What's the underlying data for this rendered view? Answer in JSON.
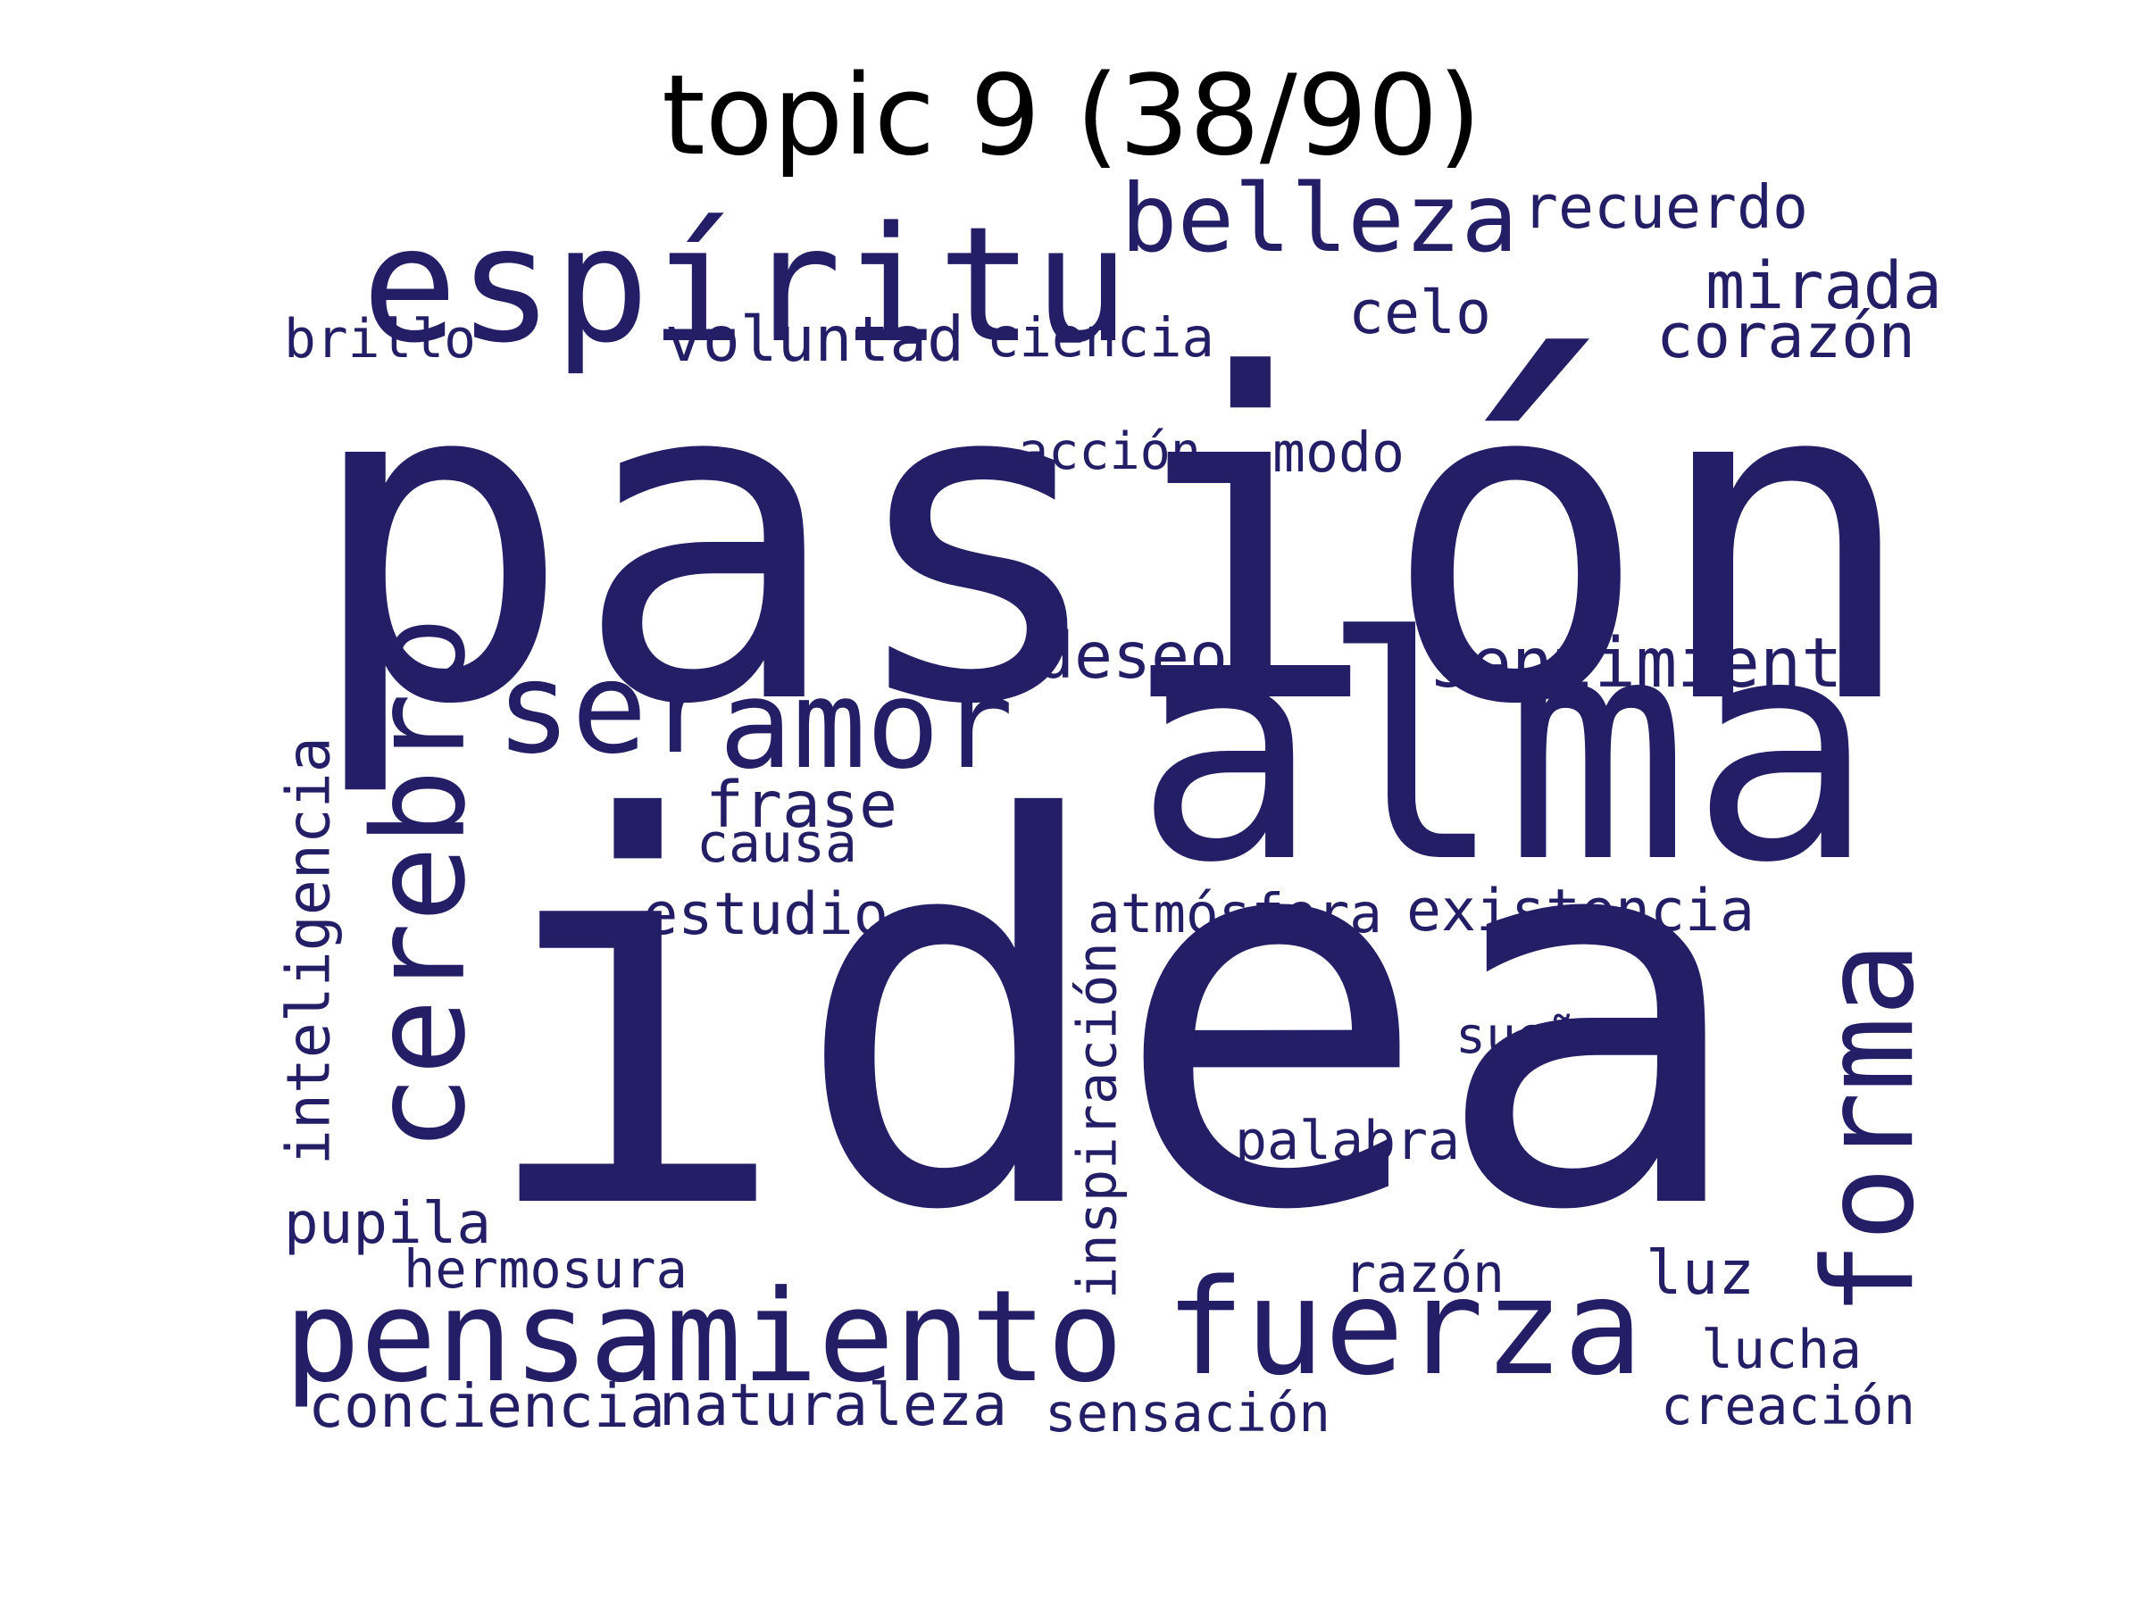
{
  "title": "topic 9 (38/90)",
  "colors": {
    "word": "#231e66",
    "title": "#000000",
    "background": "#ffffff"
  },
  "words": [
    {
      "text": "pasión",
      "orientation": "horizontal"
    },
    {
      "text": "idea",
      "orientation": "horizontal"
    },
    {
      "text": "alma",
      "orientation": "horizontal"
    },
    {
      "text": "espíritu",
      "orientation": "horizontal"
    },
    {
      "text": "belleza",
      "orientation": "horizontal"
    },
    {
      "text": "recuerdo",
      "orientation": "horizontal"
    },
    {
      "text": "mirada",
      "orientation": "horizontal"
    },
    {
      "text": "celo",
      "orientation": "horizontal"
    },
    {
      "text": "corazón",
      "orientation": "horizontal"
    },
    {
      "text": "voluntad",
      "orientation": "horizontal"
    },
    {
      "text": "ciencia",
      "orientation": "horizontal"
    },
    {
      "text": "brillo",
      "orientation": "horizontal"
    },
    {
      "text": "acción",
      "orientation": "horizontal"
    },
    {
      "text": "modo",
      "orientation": "horizontal"
    },
    {
      "text": "deseo",
      "orientation": "horizontal"
    },
    {
      "text": "sentimiento",
      "orientation": "horizontal"
    },
    {
      "text": "ser",
      "orientation": "horizontal"
    },
    {
      "text": "amor",
      "orientation": "horizontal"
    },
    {
      "text": "cerebro",
      "orientation": "vertical"
    },
    {
      "text": "frase",
      "orientation": "horizontal"
    },
    {
      "text": "causa",
      "orientation": "horizontal"
    },
    {
      "text": "inteligencia",
      "orientation": "vertical"
    },
    {
      "text": "estudio",
      "orientation": "horizontal"
    },
    {
      "text": "atmósfera",
      "orientation": "horizontal"
    },
    {
      "text": "existencia",
      "orientation": "horizontal"
    },
    {
      "text": "forma",
      "orientation": "vertical"
    },
    {
      "text": "inspiración",
      "orientation": "vertical"
    },
    {
      "text": "sueño",
      "orientation": "horizontal"
    },
    {
      "text": "palabra",
      "orientation": "horizontal"
    },
    {
      "text": "pupila",
      "orientation": "horizontal"
    },
    {
      "text": "hermosura",
      "orientation": "horizontal"
    },
    {
      "text": "razón",
      "orientation": "horizontal"
    },
    {
      "text": "luz",
      "orientation": "horizontal"
    },
    {
      "text": "pensamiento",
      "orientation": "horizontal"
    },
    {
      "text": "fuerza",
      "orientation": "horizontal"
    },
    {
      "text": "lucha",
      "orientation": "horizontal"
    },
    {
      "text": "conciencia",
      "orientation": "horizontal"
    },
    {
      "text": "naturaleza",
      "orientation": "horizontal"
    },
    {
      "text": "sensación",
      "orientation": "horizontal"
    },
    {
      "text": "creación",
      "orientation": "horizontal"
    }
  ]
}
